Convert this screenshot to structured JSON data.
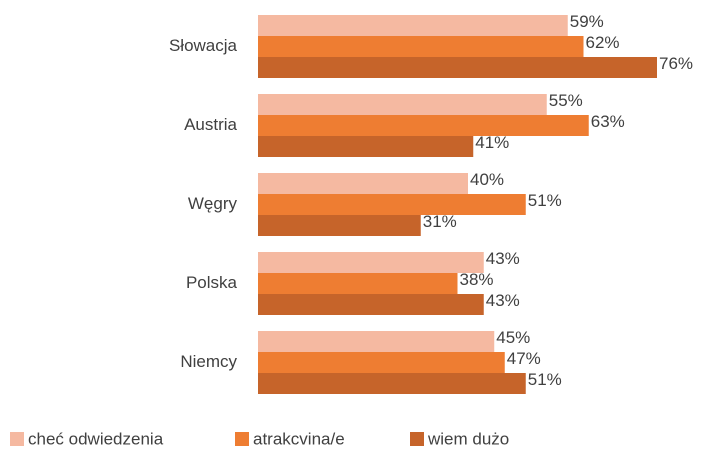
{
  "chart_data": {
    "type": "bar",
    "orientation": "horizontal",
    "categories": [
      "Słowacja",
      "Austria",
      "Węgry",
      "Polska",
      "Niemcy"
    ],
    "series": [
      {
        "name": "cheć odwiedzenia",
        "color": "#f5b9a1",
        "values": [
          59,
          55,
          40,
          43,
          45
        ],
        "value_labels": [
          "59%",
          "55%",
          "40%",
          "43%",
          "45%"
        ]
      },
      {
        "name": "atrakcvina/e",
        "color": "#ee7d32",
        "values": [
          62,
          63,
          51,
          38,
          47
        ],
        "value_labels": [
          "62%",
          "63%",
          "51%",
          "38%",
          "47%"
        ]
      },
      {
        "name": "wiem dużo",
        "color": "#c6642a",
        "values": [
          76,
          41,
          31,
          43,
          51
        ],
        "value_labels": [
          "76%",
          "41%",
          "31%",
          "43%",
          "51%"
        ]
      }
    ]
  }
}
